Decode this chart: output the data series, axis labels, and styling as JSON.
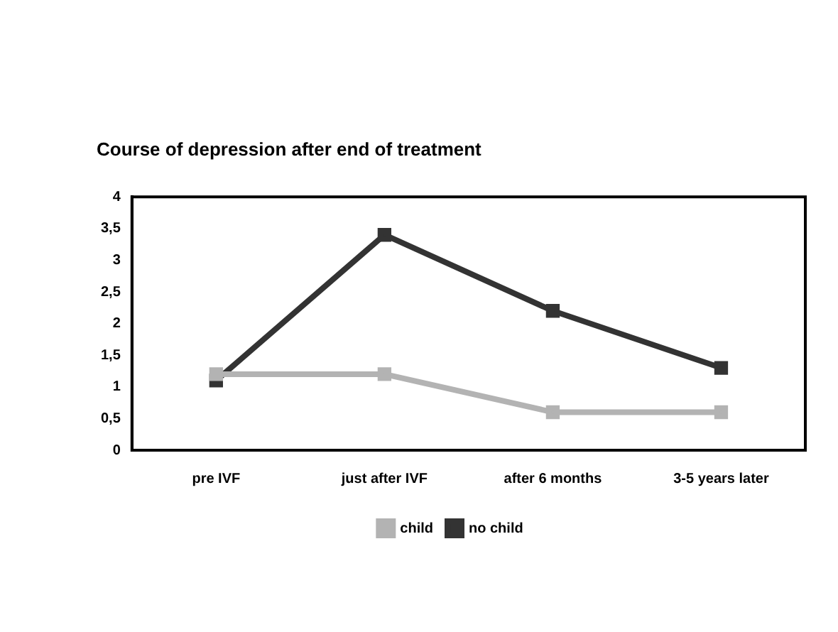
{
  "chart_data": {
    "type": "line",
    "title": "Course of depression after end of treatment",
    "categories": [
      "pre IVF",
      "just after IVF",
      "after 6 months",
      "3-5 years later"
    ],
    "series": [
      {
        "name": "child",
        "color": "#b3b3b3",
        "values": [
          1.2,
          1.2,
          0.6,
          0.6
        ]
      },
      {
        "name": "no child",
        "color": "#333333",
        "values": [
          1.1,
          3.4,
          2.2,
          1.3
        ]
      }
    ],
    "ylim": [
      0,
      4
    ],
    "yticks": [
      0,
      {
        "value": 0.5,
        "label": "0,5"
      },
      1,
      {
        "value": 1.5,
        "label": "1,5"
      },
      2,
      {
        "value": 2.5,
        "label": "2,5"
      },
      3,
      {
        "value": 3.5,
        "label": "3,5"
      },
      4
    ],
    "grid": false,
    "legend": "bottom",
    "marker": "square",
    "line_style": "solid"
  }
}
